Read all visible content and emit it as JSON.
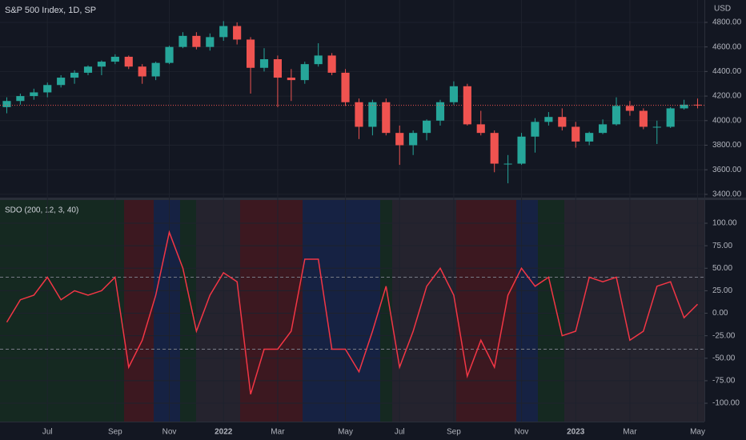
{
  "chart_data": [
    {
      "type": "candlestick",
      "title": "S&P 500 Index, 1D, SP",
      "y_axis_label": "USD",
      "up_color": "#26a69a",
      "down_color": "#ef5350",
      "grid": true,
      "ylim": [
        3367,
        4982
      ],
      "yticks": [
        {
          "value": 3400,
          "label": "3400.00"
        },
        {
          "value": 3600,
          "label": "3600.00"
        },
        {
          "value": 3800,
          "label": "3800.00"
        },
        {
          "value": 4000,
          "label": "4000.00"
        },
        {
          "value": 4200,
          "label": "4200.00"
        },
        {
          "value": 4400,
          "label": "4400.00"
        },
        {
          "value": 4600,
          "label": "4600.00"
        },
        {
          "value": 4800,
          "label": "4800.00"
        }
      ],
      "open": [
        4110,
        4160,
        4200,
        4230,
        4290,
        4350,
        4390,
        4440,
        4480,
        4520,
        4440,
        4360,
        4470,
        4600,
        4690,
        4600,
        4680,
        4770,
        4660,
        4430,
        4500,
        4350,
        4330,
        4460,
        4530,
        4390,
        4150,
        3950,
        4150,
        3900,
        3800,
        3900,
        4000,
        4150,
        4280,
        3970,
        3900,
        3650,
        3650,
        3870,
        3990,
        4030,
        3950,
        3830,
        3900,
        3970,
        4120,
        4080,
        3950,
        3950,
        4100,
        4130
      ],
      "high": [
        4190,
        4220,
        4260,
        4310,
        4370,
        4410,
        4450,
        4490,
        4540,
        4530,
        4460,
        4480,
        4610,
        4720,
        4720,
        4710,
        4810,
        4800,
        4680,
        4590,
        4530,
        4420,
        4480,
        4630,
        4550,
        4420,
        4180,
        4170,
        4180,
        3960,
        3920,
        4010,
        4170,
        4320,
        4300,
        4080,
        3920,
        3720,
        3900,
        4020,
        4070,
        4100,
        3990,
        3910,
        4010,
        4190,
        4160,
        4100,
        4000,
        4110,
        4170,
        4180
      ],
      "low": [
        4060,
        4130,
        4170,
        4190,
        4270,
        4300,
        4370,
        4370,
        4460,
        4420,
        4300,
        4330,
        4460,
        4590,
        4580,
        4570,
        4650,
        4620,
        4220,
        4400,
        4110,
        4160,
        4300,
        4440,
        4370,
        4120,
        3850,
        3880,
        3880,
        3640,
        3720,
        3840,
        3960,
        4130,
        3960,
        3880,
        3580,
        3490,
        3640,
        3740,
        3960,
        3920,
        3780,
        3800,
        3890,
        3960,
        4040,
        3930,
        3810,
        3940,
        4090,
        4100
      ],
      "close": [
        4160,
        4200,
        4230,
        4290,
        4350,
        4390,
        4440,
        4480,
        4520,
        4440,
        4360,
        4470,
        4600,
        4690,
        4600,
        4680,
        4770,
        4660,
        4430,
        4500,
        4350,
        4330,
        4460,
        4530,
        4390,
        4150,
        3950,
        4150,
        3900,
        3800,
        3900,
        4000,
        4150,
        4280,
        3970,
        3900,
        3650,
        3650,
        3870,
        3990,
        4030,
        3950,
        3830,
        3900,
        3970,
        4120,
        4080,
        3950,
        3950,
        4100,
        4130,
        4125
      ]
    },
    {
      "type": "line",
      "title": "SDO (200, 12, 3, 40)",
      "grid": true,
      "categories": [
        null,
        null,
        null,
        "Jul",
        null,
        null,
        null,
        null,
        "Sep",
        null,
        null,
        null,
        "Nov",
        null,
        null,
        null,
        "2022",
        null,
        null,
        null,
        "Mar",
        null,
        null,
        null,
        null,
        "May",
        null,
        null,
        null,
        "Jul",
        null,
        null,
        null,
        "Sep",
        null,
        null,
        null,
        null,
        "Nov",
        null,
        null,
        null,
        "2023",
        null,
        null,
        null,
        "Mar",
        null,
        null,
        null,
        null,
        "May"
      ],
      "ylim": [
        -120.4,
        125.8
      ],
      "yticks": [
        {
          "value": 100,
          "label": "100.00"
        },
        {
          "value": 75,
          "label": "75.00"
        },
        {
          "value": 50,
          "label": "50.00"
        },
        {
          "value": 25,
          "label": "25.00"
        },
        {
          "value": 0,
          "label": "0.00"
        },
        {
          "value": -25,
          "label": "-25.00"
        },
        {
          "value": -50,
          "label": "-50.00"
        },
        {
          "value": -75,
          "label": "-75.00"
        },
        {
          "value": -100,
          "label": "-100.00"
        }
      ],
      "levels": [
        40,
        -40
      ],
      "color": "#f23645",
      "values": [
        -10,
        15,
        20,
        40,
        15,
        25,
        20,
        25,
        40,
        -60,
        -30,
        20,
        90,
        50,
        -20,
        20,
        45,
        35,
        -90,
        -40,
        -40,
        -20,
        60,
        60,
        -40,
        -40,
        -65,
        -20,
        30,
        -60,
        -20,
        30,
        50,
        20,
        -70,
        -30,
        -60,
        20,
        50,
        30,
        40,
        -25,
        -20,
        40,
        35,
        40,
        -30,
        -20,
        30,
        35,
        -5,
        10
      ]
    }
  ]
}
